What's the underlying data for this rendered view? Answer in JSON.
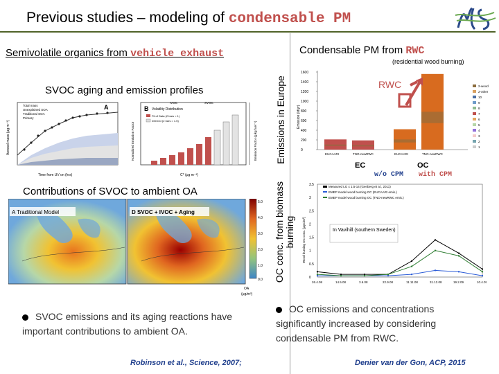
{
  "title": {
    "prefix": "Previous studies – modeling of ",
    "highlight": "condensable PM"
  },
  "left": {
    "subtitle_prefix": "Semivolatile organics from ",
    "subtitle_highlight": "vehicle exhaust",
    "svoc_heading": "SVOC aging and emission profiles",
    "contrib_heading": "Contributions of SVOC to ambient OA",
    "bullet": "SVOC emissions and its aging reactions have important contributions to ambient OA.",
    "citation": "Robinson et al., Science, 2007;"
  },
  "right": {
    "subtitle_prefix": "Condensable PM from ",
    "subtitle_highlight": "RWC",
    "note": "(residential wood burning)",
    "vlabel_emissions": "Emissions in Europe",
    "vlabel_oc": "OC conc. from biomass burning",
    "rwc_label": "RWC",
    "ec_label": "EC",
    "oc_label": "OC",
    "wo_cpm": "w/o CPM",
    "with_cpm": "with CPM",
    "inset_location": "In Vavihill (southern Sweden)",
    "bullet": "OC emissions and concentrations significantly increased by considering condensable PM from RWC.",
    "citation": "Denier van der Gon, ACP, 2015"
  },
  "figure_a": {
    "panel_a": "A",
    "panel_b": "B",
    "panel_b_title": "Volatility Distribution",
    "legend_total": "Total mass",
    "legend_unexplained": "Unexplained SOA",
    "legend_traditional": "Traditional SOA",
    "legend_primary": "Primary",
    "legend_fit": "Fit of Data (2 bars = 1)",
    "legend_inferred": "Inferred (2 bars = 1.5)",
    "xlabel_a": "Time from UV on (hrs)",
    "ylabel_a": "Aerosol mass (μg m⁻³)",
    "xlabel_b": "C* (μg m⁻³)",
    "ylabel_b": "Normalized Emission Factor",
    "ylabel_b2": "Emission Factor (g kg fuel⁻¹)",
    "ivoc": "IVOC",
    "svoc": "SVOC"
  },
  "figure_maps": {
    "panel_a": "A Traditional Model",
    "panel_d": "D SVOC + IVOC + Aging",
    "cb_title": "OA",
    "cb_units": "(μg/m³)",
    "cb_ticks": [
      "5.0",
      "4.0",
      "3.0",
      "2.0",
      "1.0",
      "0.0"
    ]
  },
  "figure_bar": {
    "ylabel": "Emission (kt/yr)",
    "yticks": [
      "1600",
      "1400",
      "1200",
      "1000",
      "800",
      "600",
      "400",
      "200",
      "0"
    ],
    "categories": [
      "EUCAARI",
      "TNO-newRWC",
      "EUCAARI",
      "TNO-newRWC"
    ],
    "legend": [
      "2-wood",
      "2-other",
      "10",
      "9",
      "8",
      "7",
      "6",
      "5",
      "4",
      "3",
      "2",
      "1"
    ]
  },
  "figure_line": {
    "ylabel": "Wood burning OC conc. [μgC/m³]",
    "legend": [
      "Measured LG x 1.5-14 (Genberg et al., 2011)",
      "EMEP model wood burning OC (EUCAARI emis.)",
      "EMEP model wood burning OC (TNO-newRWC emis.)"
    ],
    "yticks": [
      "3.5",
      "3",
      "2.5",
      "2",
      "1.5",
      "1",
      "0.5",
      "0"
    ],
    "xticks": [
      "26.4.08",
      "14.5.08",
      "3.6.08",
      "22.9.08",
      "11.11.08",
      "31.12.08",
      "19.2.09",
      "10.4.09"
    ]
  },
  "colors": {
    "accent": "#c0504d",
    "rule": "#4f6228",
    "citation": "#1f3e8c",
    "bar_red": "#c0504d",
    "bar_orange": "#d86b1f",
    "line_blue": "#2a5bd7",
    "line_green": "#2e7d32",
    "arrow_red": "#c0504d"
  },
  "chart_data": [
    {
      "type": "bar",
      "categories": [
        "EUCAARI",
        "TNO-newRWC",
        "EUCAARI",
        "TNO-newRWC"
      ],
      "values": [
        210,
        190,
        420,
        1560
      ],
      "title": "",
      "xlabel": "",
      "ylabel": "Emission (kt/yr)",
      "ylim": [
        0,
        1600
      ]
    },
    {
      "type": "line",
      "x": [
        "26.4.08",
        "14.5.08",
        "3.6.08",
        "22.9.08",
        "11.11.08",
        "31.12.08",
        "19.2.09",
        "10.4.09"
      ],
      "series": [
        {
          "name": "Measured LG x 1.5-14 (Genberg et al., 2011)",
          "values": [
            0.2,
            0.1,
            0.1,
            0.1,
            0.6,
            1.4,
            0.9,
            0.3
          ]
        },
        {
          "name": "EMEP model wood burning OC (EUCAARI emis.)",
          "values": [
            0.05,
            0.05,
            0.05,
            0.05,
            0.1,
            0.25,
            0.2,
            0.05
          ]
        },
        {
          "name": "EMEP model wood burning OC (TNO-newRWC emis.)",
          "values": [
            0.1,
            0.05,
            0.05,
            0.1,
            0.4,
            1.0,
            0.8,
            0.2
          ]
        }
      ],
      "title": "",
      "xlabel": "",
      "ylabel": "Wood burning OC conc. [μgC/m³]",
      "ylim": [
        0,
        3.5
      ]
    }
  ]
}
